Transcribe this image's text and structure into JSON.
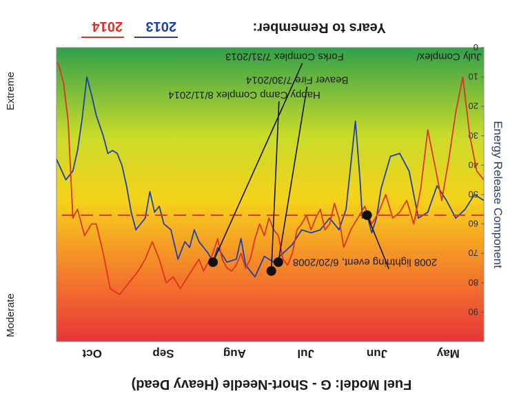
{
  "chart_data": {
    "type": "line",
    "title": "Fuel Model: G - Short-Needle (Heavy Dead)",
    "ylabel": "Energy Release Component",
    "months": [
      "May",
      "Jun",
      "Jul",
      "Aug",
      "Sep",
      "Oct"
    ],
    "y_ticks": [
      0,
      10,
      20,
      30,
      40,
      50,
      60,
      70,
      80,
      90
    ],
    "ylim": [
      0,
      100
    ],
    "x_range_days": [
      0,
      183
    ],
    "side_labels": {
      "top": "Moderate",
      "bottom": "Extreme"
    },
    "reference_line": {
      "value": 57,
      "color": "#e03020"
    },
    "legend": {
      "prefix": "Years to Remember:",
      "items": [
        {
          "label": "2013",
          "color": "#1f3fa8"
        },
        {
          "label": "2014",
          "color": "#e03020"
        }
      ]
    },
    "annotations": [
      {
        "text": "2008 lightning event, 6/20/2008",
        "x": 20,
        "y": 72
      },
      {
        "text": "July Complex/",
        "x": 1,
        "y": 2
      },
      {
        "text": "Beaver Fire 7/30/2014",
        "x": 58,
        "y": 10
      },
      {
        "text": "Happy Camp Complex 8/11/2014",
        "x": 70,
        "y": 15
      },
      {
        "text": "Forks Complex 7/31/2013",
        "x": 60,
        "y": 2
      }
    ],
    "markers": [
      {
        "x": 50,
        "y": 57
      },
      {
        "x": 88,
        "y": 73
      },
      {
        "x": 91,
        "y": 76
      },
      {
        "x": 116,
        "y": 73
      }
    ],
    "series": [
      {
        "name": "2013",
        "color": "#1f3fa8",
        "points": [
          [
            0,
            52
          ],
          [
            4,
            50
          ],
          [
            8,
            55
          ],
          [
            12,
            58
          ],
          [
            16,
            52
          ],
          [
            20,
            47
          ],
          [
            24,
            56
          ],
          [
            28,
            58
          ],
          [
            32,
            42
          ],
          [
            36,
            36
          ],
          [
            40,
            37
          ],
          [
            44,
            48
          ],
          [
            46,
            58
          ],
          [
            48,
            63
          ],
          [
            50,
            57
          ],
          [
            52,
            58
          ],
          [
            53,
            45
          ],
          [
            55,
            25
          ],
          [
            57,
            40
          ],
          [
            59,
            55
          ],
          [
            62,
            62
          ],
          [
            66,
            58
          ],
          [
            70,
            62
          ],
          [
            74,
            63
          ],
          [
            78,
            62
          ],
          [
            82,
            67
          ],
          [
            86,
            70
          ],
          [
            90,
            73
          ],
          [
            94,
            71
          ],
          [
            98,
            78
          ],
          [
            102,
            74
          ],
          [
            104,
            65
          ],
          [
            106,
            72
          ],
          [
            110,
            73
          ],
          [
            114,
            68
          ],
          [
            116,
            73
          ],
          [
            118,
            70
          ],
          [
            122,
            66
          ],
          [
            124,
            62
          ],
          [
            126,
            68
          ],
          [
            128,
            66
          ],
          [
            131,
            72
          ],
          [
            134,
            62
          ],
          [
            137,
            60
          ],
          [
            139,
            54
          ],
          [
            141,
            56
          ],
          [
            143,
            49
          ],
          [
            145,
            58
          ],
          [
            147,
            60
          ],
          [
            149,
            62
          ],
          [
            151,
            56
          ],
          [
            153,
            47
          ],
          [
            155,
            40
          ],
          [
            157,
            36
          ],
          [
            159,
            35
          ],
          [
            161,
            36
          ],
          [
            163,
            30
          ],
          [
            166,
            23
          ],
          [
            168,
            16
          ],
          [
            170,
            10
          ],
          [
            172,
            24
          ],
          [
            174,
            35
          ],
          [
            176,
            42
          ],
          [
            179,
            45
          ],
          [
            183,
            38
          ]
        ]
      },
      {
        "name": "2014",
        "color": "#e03020",
        "points": [
          [
            0,
            45
          ],
          [
            3,
            42
          ],
          [
            6,
            30
          ],
          [
            9,
            10
          ],
          [
            12,
            22
          ],
          [
            15,
            38
          ],
          [
            18,
            52
          ],
          [
            21,
            40
          ],
          [
            24,
            28
          ],
          [
            27,
            48
          ],
          [
            30,
            60
          ],
          [
            33,
            52
          ],
          [
            36,
            56
          ],
          [
            39,
            58
          ],
          [
            42,
            50
          ],
          [
            45,
            56
          ],
          [
            48,
            60
          ],
          [
            51,
            54
          ],
          [
            54,
            58
          ],
          [
            57,
            62
          ],
          [
            60,
            68
          ],
          [
            62,
            58
          ],
          [
            64,
            53
          ],
          [
            66,
            60
          ],
          [
            68,
            62
          ],
          [
            70,
            55
          ],
          [
            72,
            58
          ],
          [
            74,
            62
          ],
          [
            76,
            57
          ],
          [
            78,
            60
          ],
          [
            80,
            62
          ],
          [
            82,
            70
          ],
          [
            84,
            74
          ],
          [
            86,
            72
          ],
          [
            88,
            64
          ],
          [
            90,
            62
          ],
          [
            92,
            58
          ],
          [
            94,
            64
          ],
          [
            96,
            60
          ],
          [
            98,
            65
          ],
          [
            100,
            72
          ],
          [
            102,
            75
          ],
          [
            104,
            70
          ],
          [
            106,
            74
          ],
          [
            108,
            76
          ],
          [
            110,
            75
          ],
          [
            112,
            72
          ],
          [
            114,
            65
          ],
          [
            116,
            70
          ],
          [
            118,
            73
          ],
          [
            120,
            76
          ],
          [
            122,
            72
          ],
          [
            126,
            77
          ],
          [
            130,
            82
          ],
          [
            133,
            78
          ],
          [
            136,
            80
          ],
          [
            139,
            72
          ],
          [
            142,
            66
          ],
          [
            145,
            72
          ],
          [
            148,
            76
          ],
          [
            152,
            80
          ],
          [
            156,
            84
          ],
          [
            160,
            82
          ],
          [
            163,
            70
          ],
          [
            166,
            60
          ],
          [
            168,
            60
          ],
          [
            171,
            64
          ],
          [
            174,
            55
          ],
          [
            176,
            58
          ],
          [
            178,
            25
          ],
          [
            180,
            12
          ],
          [
            182,
            6
          ],
          [
            183,
            5
          ]
        ]
      }
    ]
  }
}
